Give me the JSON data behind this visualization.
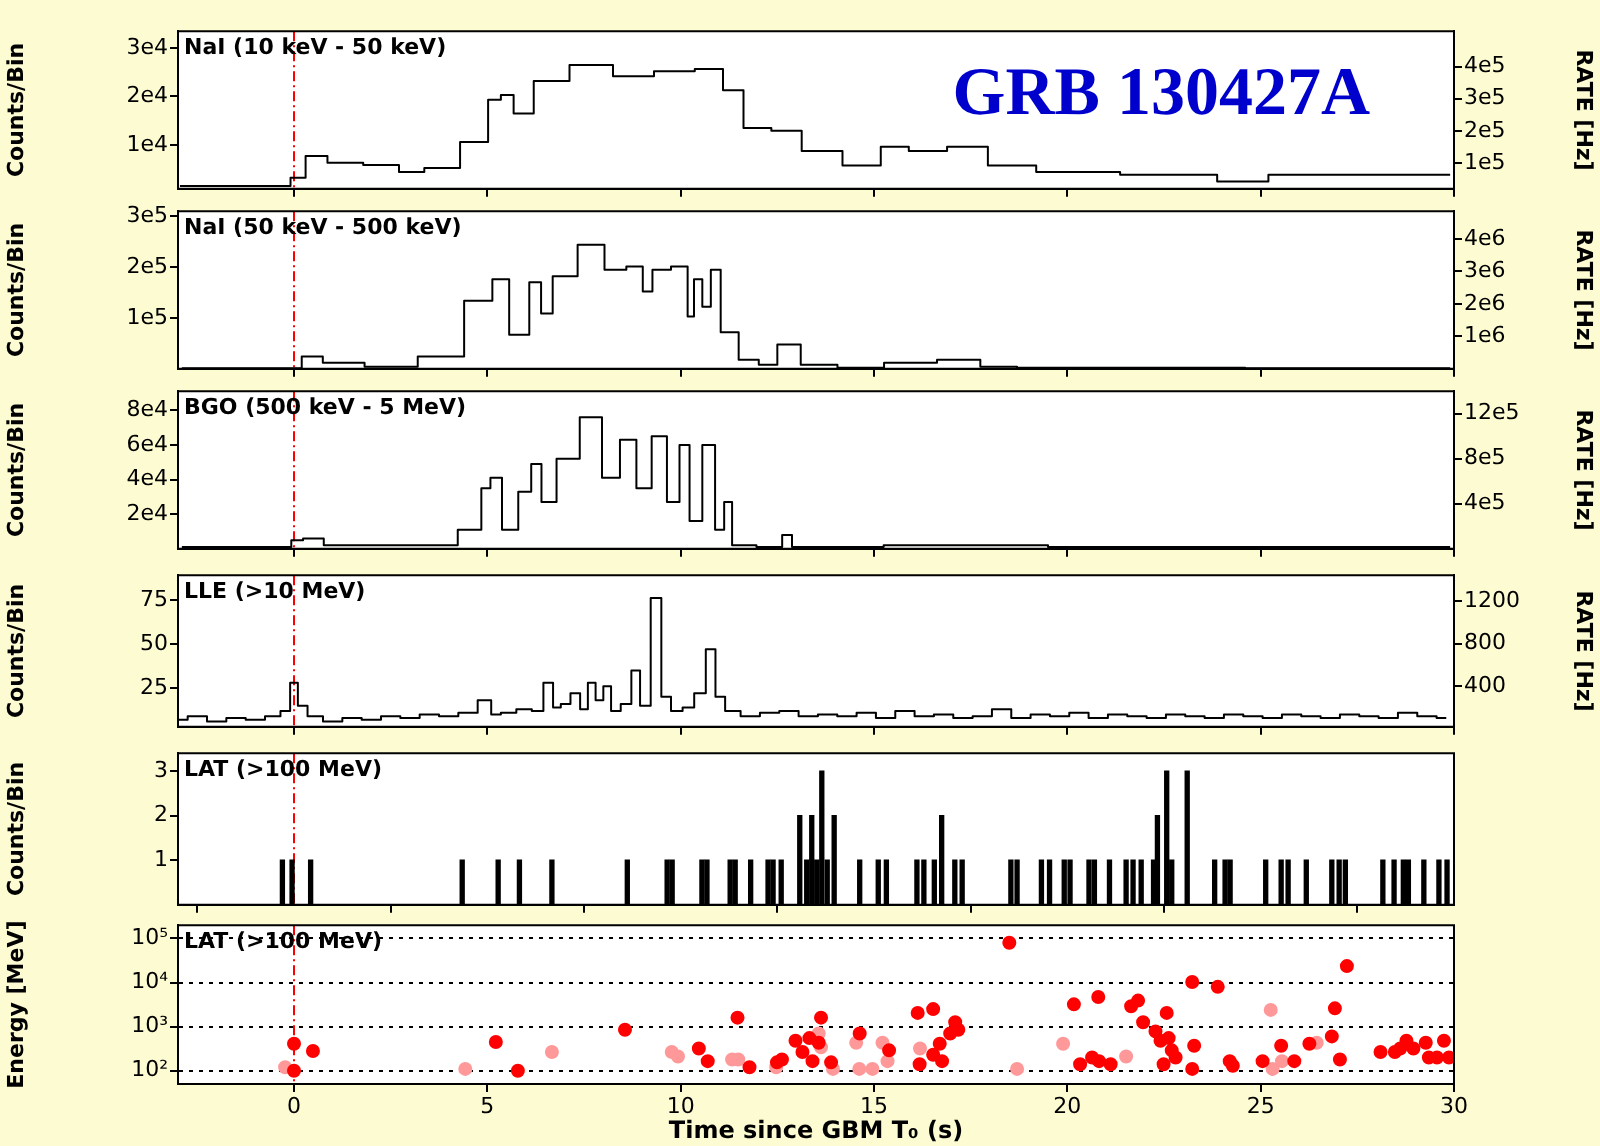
{
  "chart_data": [
    {
      "type": "step",
      "title": "NaI (10 keV - 50 keV)",
      "ylabel": "Counts/Bin",
      "y2label": "RATE [Hz]",
      "annotations": [
        "GRB 130427A"
      ],
      "xlim": [
        -3,
        30
      ],
      "xticks": [
        0,
        5,
        10,
        15,
        20,
        25,
        30
      ],
      "ylim": [
        900,
        33500
      ],
      "yticks": [
        {
          "value": 10000,
          "label": "1e4"
        },
        {
          "value": 20000,
          "label": "2e4"
        },
        {
          "value": 30000,
          "label": "3e4"
        }
      ],
      "y2lim": [
        20000,
        510000
      ],
      "y2ticks": [
        {
          "value": 100000,
          "label": "1e5"
        },
        {
          "value": 200000,
          "label": "2e5"
        },
        {
          "value": 300000,
          "label": "3e5"
        },
        {
          "value": 400000,
          "label": "4e5"
        }
      ],
      "tick_labels": "y",
      "ref_lines": [
        {
          "axis": "x",
          "value": 0,
          "color": "#ff0000",
          "line_style": "dashed"
        }
      ],
      "series": [
        {
          "color": "#000000",
          "x": [
            -2.95,
            -0.18,
            0,
            0.6,
            1.13,
            2.45,
            2.98,
            3.76,
            4.83,
            5.21,
            5.49,
            5.87,
            6.53,
            7.72,
            8.78,
            9.84,
            10.89,
            11.3,
            11.95,
            12.74,
            13.52,
            14.85,
            15.5,
            16.3,
            17.48,
            18.41,
            19.98,
            22.75,
            25.0,
            25.4,
            29.9
          ],
          "values": [
            1500,
            1500,
            3200,
            7700,
            6300,
            5800,
            4400,
            5200,
            10600,
            19300,
            20300,
            16500,
            23200,
            26500,
            24200,
            25200,
            25700,
            21300,
            13500,
            12900,
            8700,
            5700,
            9600,
            8700,
            9600,
            5700,
            4400,
            3800,
            2400,
            3800,
            3800
          ]
        }
      ]
    },
    {
      "type": "step",
      "title": "NaI (50 keV - 500 keV)",
      "ylabel": "Counts/Bin",
      "y2label": "RATE [Hz]",
      "xlim": [
        -3,
        30
      ],
      "xticks": [
        0,
        5,
        10,
        15,
        20,
        25,
        30
      ],
      "ylim": [
        0,
        310000
      ],
      "yticks": [
        {
          "value": 100000,
          "label": "1e5"
        },
        {
          "value": 200000,
          "label": "2e5"
        },
        {
          "value": 300000,
          "label": "3e5"
        }
      ],
      "y2lim": [
        0,
        4850000
      ],
      "y2ticks": [
        {
          "value": 1000000,
          "label": "1e6"
        },
        {
          "value": 2000000,
          "label": "2e6"
        },
        {
          "value": 3000000,
          "label": "3e6"
        },
        {
          "value": 4000000,
          "label": "4e6"
        }
      ],
      "tick_labels": "y",
      "ref_lines": [
        {
          "axis": "x",
          "value": 0,
          "color": "#ff0000",
          "line_style": "dashed"
        }
      ],
      "series": [
        {
          "color": "#000000",
          "x": [
            -2.9,
            -0.04,
            0.44,
            1.05,
            2.6,
            3.8,
            5.0,
            5.26,
            5.87,
            6.3,
            6.48,
            6.9,
            7.77,
            8.29,
            8.9,
            9.14,
            9.4,
            10.1,
            10.26,
            10.43,
            10.69,
            10.87,
            11.2,
            11.8,
            12.24,
            12.76,
            13.45,
            14.66,
            15.86,
            17.4,
            18.1,
            19.3,
            29.9
          ],
          "values": [
            1000,
            1000,
            24000,
            12000,
            4000,
            24000,
            134000,
            176000,
            67000,
            170000,
            109000,
            182000,
            244000,
            195000,
            201000,
            152000,
            195000,
            201000,
            103000,
            176000,
            122000,
            195000,
            72000,
            18000,
            8000,
            48000,
            8000,
            2000,
            12000,
            18000,
            4000,
            2000,
            1000
          ]
        }
      ]
    },
    {
      "type": "step",
      "title": "BGO (500 keV - 5 MeV)",
      "ylabel": "Counts/Bin",
      "y2label": "RATE [Hz]",
      "xlim": [
        -3,
        30
      ],
      "xticks": [
        0,
        5,
        10,
        15,
        20,
        25,
        30
      ],
      "ylim": [
        0,
        91000
      ],
      "yticks": [
        {
          "value": 20000,
          "label": "2e4"
        },
        {
          "value": 40000,
          "label": "4e4"
        },
        {
          "value": 60000,
          "label": "6e4"
        },
        {
          "value": 80000,
          "label": "8e4"
        }
      ],
      "y2lim": [
        0,
        1400000
      ],
      "y2ticks": [
        {
          "value": 400000,
          "label": "4e5"
        },
        {
          "value": 800000,
          "label": "8e5"
        },
        {
          "value": 1200000,
          "label": "12e5"
        }
      ],
      "tick_labels": "y",
      "ref_lines": [
        {
          "axis": "x",
          "value": 0,
          "color": "#ff0000",
          "line_style": "dashed"
        }
      ],
      "series": [
        {
          "color": "#000000",
          "x": [
            -2.9,
            -0.2,
            0.06,
            0.41,
            1.13,
            3.78,
            4.69,
            5.0,
            5.16,
            5.6,
            6.0,
            6.27,
            6.53,
            7.05,
            7.73,
            8.2,
            8.66,
            9.05,
            9.45,
            9.84,
            10.1,
            10.36,
            10.76,
            11.02,
            11.23,
            11.43,
            12.49,
            12.76,
            13.0,
            17.5,
            21.5,
            29.9
          ],
          "values": [
            1000,
            1000,
            5000,
            6000,
            2000,
            2000,
            11000,
            35000,
            41000,
            11000,
            33000,
            49000,
            27000,
            52000,
            76000,
            41000,
            63000,
            35000,
            65000,
            27000,
            60000,
            16000,
            60000,
            11000,
            27000,
            2000,
            1000,
            8000,
            1000,
            2000,
            1000,
            1000
          ]
        }
      ]
    },
    {
      "type": "step",
      "title": "LLE (>10 MeV)",
      "ylabel": "Counts/Bin",
      "y2label": "RATE [Hz]",
      "xlim": [
        -3,
        30
      ],
      "xticks": [
        0,
        5,
        10,
        15,
        20,
        25,
        30
      ],
      "ylim": [
        3,
        89
      ],
      "yticks": [
        25,
        50,
        75
      ],
      "y2lim": [
        14,
        1445
      ],
      "y2ticks": [
        400,
        800,
        1200
      ],
      "tick_labels": "y",
      "ref_lines": [
        {
          "axis": "x",
          "value": 0,
          "color": "#ff0000",
          "line_style": "dashed"
        }
      ],
      "series": [
        {
          "color": "#000000",
          "x": [
            -3,
            -2.5,
            -2,
            -1.5,
            -1,
            -0.5,
            -0.2,
            0,
            0.2,
            0.5,
            1,
            1.5,
            2,
            2.5,
            3,
            3.5,
            4,
            4.5,
            5,
            5.2,
            5.5,
            6,
            6.3,
            6.6,
            6.8,
            7,
            7.3,
            7.5,
            7.7,
            7.9,
            8.1,
            8.3,
            8.6,
            8.85,
            9.05,
            9.4,
            9.6,
            9.9,
            10.2,
            10.5,
            10.8,
            11,
            11.3,
            11.8,
            12.3,
            12.8,
            13.3,
            13.8,
            14.3,
            14.8,
            15.3,
            15.8,
            16.3,
            16.8,
            17.3,
            17.8,
            18.3,
            18.8,
            19.3,
            19.8,
            20.3,
            20.8,
            21.3,
            21.8,
            22.3,
            22.8,
            23.3,
            23.8,
            24.3,
            24.8,
            25.3,
            25.8,
            26.3,
            26.8,
            27.3,
            27.8,
            28.3,
            28.8,
            29.3,
            29.8
          ],
          "values": [
            7,
            9,
            6,
            8,
            7,
            9,
            12,
            28,
            15,
            9,
            6,
            8,
            7,
            9,
            8,
            10,
            9,
            11,
            18,
            10,
            11,
            13,
            12,
            28,
            14,
            16,
            22,
            13,
            28,
            18,
            26,
            12,
            16,
            35,
            15,
            76,
            20,
            12,
            14,
            22,
            47,
            20,
            12,
            9,
            11,
            12,
            9,
            10,
            9,
            11,
            8,
            12,
            9,
            10,
            8,
            9,
            13,
            8,
            10,
            9,
            11,
            8,
            10,
            9,
            8,
            10,
            9,
            8,
            10,
            9,
            8,
            10,
            9,
            8,
            10,
            9,
            8,
            11,
            9,
            8
          ]
        }
      ]
    },
    {
      "type": "bar",
      "title": "LAT (>100 MeV)",
      "ylabel": "Counts/Bin",
      "xlim": [
        -3,
        30
      ],
      "xticks": [
        0,
        5,
        10,
        15,
        20,
        25,
        30
      ],
      "ylim": [
        0,
        3.4
      ],
      "yticks": [
        1,
        2,
        3
      ],
      "tick_labels": "y",
      "ref_lines": [
        {
          "axis": "x",
          "value": 0,
          "color": "#ff0000",
          "line_style": "dashed"
        }
      ],
      "series": [
        {
          "color": "#000000",
          "x": [
            -0.3,
            -0.05,
            0.43,
            4.35,
            5.28,
            5.83,
            6.67,
            8.62,
            9.65,
            9.78,
            10.55,
            10.68,
            11.28,
            11.41,
            11.81,
            12.26,
            12.39,
            12.6,
            13.08,
            13.26,
            13.39,
            13.52,
            13.65,
            13.79,
            13.97,
            14.63,
            15.11,
            15.32,
            16.11,
            16.29,
            16.56,
            16.75,
            17.09,
            17.28,
            18.54,
            18.7,
            19.33,
            19.54,
            19.92,
            20.07,
            20.56,
            20.7,
            21.09,
            21.52,
            21.7,
            21.91,
            22.23,
            22.33,
            22.57,
            22.7,
            23.1,
            23.81,
            24.08,
            24.21,
            25.13,
            25.53,
            25.71,
            26.18,
            26.84,
            27.03,
            27.19,
            28.16,
            28.45,
            28.69,
            28.82,
            29.22,
            29.61,
            29.82
          ],
          "values": [
            1,
            1,
            1,
            1,
            1,
            1,
            1,
            1,
            1,
            1,
            1,
            1,
            1,
            1,
            1,
            1,
            1,
            1,
            2,
            1,
            2,
            1,
            3,
            1,
            2,
            1,
            1,
            1,
            1,
            1,
            1,
            2,
            1,
            1,
            1,
            1,
            1,
            1,
            1,
            1,
            1,
            1,
            1,
            1,
            1,
            1,
            1,
            2,
            3,
            1,
            3,
            1,
            1,
            1,
            1,
            1,
            1,
            1,
            1,
            1,
            1,
            1,
            1,
            1,
            1,
            1,
            1,
            1
          ]
        }
      ]
    },
    {
      "type": "scatter",
      "title": "LAT (>100 MeV)",
      "ylabel": "Energy [MeV]",
      "xlabel": "Time since GBM T₀ (s)",
      "xlim": [
        -3,
        30
      ],
      "xticks": [
        0,
        5,
        10,
        15,
        20,
        25,
        30
      ],
      "log": "y",
      "ylim": [
        50,
        200000
      ],
      "yticks": [
        {
          "value": 100,
          "label": "10²"
        },
        {
          "value": 1000,
          "label": "10³"
        },
        {
          "value": 10000,
          "label": "10⁴"
        },
        {
          "value": 100000,
          "label": "10⁵"
        }
      ],
      "grid": "y",
      "marker": "circle",
      "ref_lines": [
        {
          "axis": "x",
          "value": 0,
          "color": "#ff0000",
          "line_style": "dashed"
        }
      ],
      "series": [
        {
          "color": "#ff0000",
          "x": [
            0,
            0,
            0.49,
            5.22,
            5.79,
            8.56,
            10.47,
            10.7,
            11.47,
            11.78,
            12.49,
            12.62,
            12.97,
            13.15,
            13.33,
            13.41,
            13.57,
            13.63,
            13.89,
            14.63,
            15.39,
            16.13,
            16.18,
            16.53,
            16.53,
            16.7,
            16.76,
            16.97,
            17.1,
            17.18,
            18.5,
            20.17,
            20.33,
            20.82,
            20.64,
            20.8,
            21.12,
            21.65,
            21.83,
            21.96,
            22.28,
            22.41,
            22.49,
            22.57,
            22.62,
            22.7,
            22.8,
            23.23,
            23.23,
            23.28,
            23.89,
            24.2,
            24.28,
            25.05,
            25.53,
            25.87,
            26.26,
            26.92,
            26.84,
            27.05,
            27.23,
            28.1,
            28.47,
            28.61,
            28.77,
            28.95,
            29.27,
            29.35,
            29.56,
            29.74,
            29.87
          ],
          "values": [
            410,
            100,
            280,
            450,
            100,
            850,
            320,
            165,
            1600,
            120,
            155,
            180,
            480,
            265,
            550,
            165,
            430,
            1600,
            155,
            700,
            290,
            2050,
            140,
            2500,
            230,
            410,
            165,
            700,
            1260,
            850,
            80000,
            3200,
            140,
            165,
            200,
            4700,
            140,
            2900,
            3900,
            1260,
            780,
            480,
            140,
            2050,
            550,
            290,
            200,
            110,
            10300,
            370,
            8000,
            165,
            130,
            165,
            370,
            165,
            410,
            2600,
            600,
            180,
            23600,
            265,
            265,
            320,
            480,
            320,
            430,
            200,
            200,
            480,
            200
          ]
        },
        {
          "color": "#ff9999",
          "x": [
            -0.23,
            4.43,
            6.67,
            9.77,
            9.93,
            11.33,
            11.49,
            12.47,
            13.57,
            13.63,
            13.94,
            14.54,
            14.62,
            14.96,
            15.22,
            15.35,
            16.19,
            18.7,
            19.89,
            21.52,
            25.26,
            25.31,
            25.55,
            26.45
          ],
          "values": [
            120,
            110,
            265,
            265,
            210,
            180,
            180,
            120,
            700,
            340,
            110,
            430,
            110,
            110,
            430,
            165,
            320,
            110,
            410,
            210,
            2400,
            110,
            165,
            430
          ]
        }
      ]
    }
  ]
}
